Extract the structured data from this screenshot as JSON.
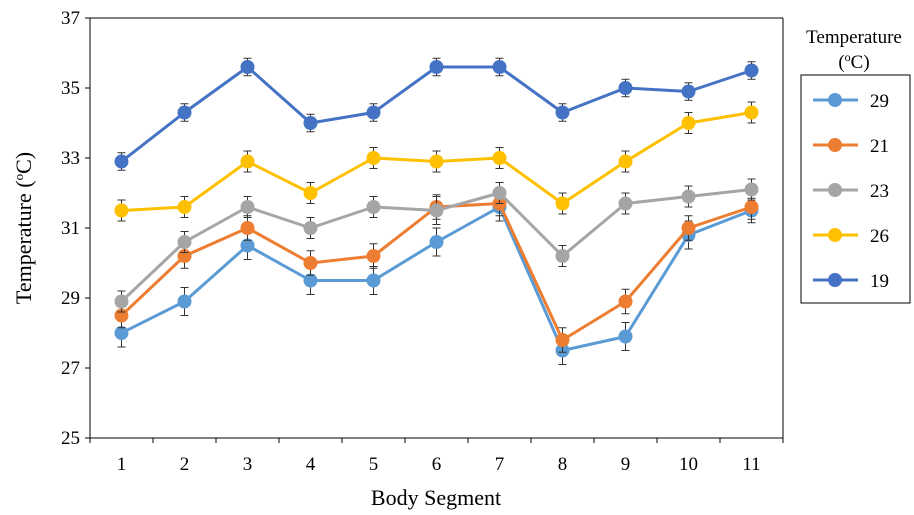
{
  "chart_data": {
    "type": "line",
    "xlabel": "Body Segment",
    "ylabel_main": "Temperature (",
    "ylabel_sup": "o",
    "ylabel_end": "C)",
    "legend_title_line1": "Temperature",
    "legend_title_line2_open": "(",
    "legend_title_line2_sup": "o",
    "legend_title_line2_end": "C)",
    "legend_position": "right",
    "categories": [
      "1",
      "2",
      "3",
      "4",
      "5",
      "6",
      "7",
      "8",
      "9",
      "10",
      "11"
    ],
    "ylim": [
      25,
      37
    ],
    "yticks": [
      "25",
      "27",
      "29",
      "31",
      "33",
      "35",
      "37"
    ],
    "grid": false,
    "series": [
      {
        "name": "29",
        "color": "#5B9BD5",
        "values": [
          28.0,
          28.9,
          30.5,
          29.5,
          29.5,
          30.6,
          31.6,
          27.5,
          27.9,
          30.8,
          31.5
        ],
        "errors": [
          0.4,
          0.4,
          0.4,
          0.4,
          0.4,
          0.4,
          0.4,
          0.4,
          0.4,
          0.4,
          0.35
        ]
      },
      {
        "name": "21",
        "color": "#ED7D31",
        "values": [
          28.5,
          30.2,
          31.0,
          30.0,
          30.2,
          31.6,
          31.7,
          27.8,
          28.9,
          31.0,
          31.6
        ],
        "errors": [
          0.35,
          0.35,
          0.35,
          0.35,
          0.35,
          0.35,
          0.35,
          0.35,
          0.35,
          0.35,
          0.35
        ]
      },
      {
        "name": "23",
        "color": "#A5A5A5",
        "values": [
          28.9,
          30.6,
          31.6,
          31.0,
          31.6,
          31.5,
          32.0,
          30.2,
          31.7,
          31.9,
          32.1
        ],
        "errors": [
          0.3,
          0.3,
          0.3,
          0.3,
          0.3,
          0.4,
          0.3,
          0.3,
          0.3,
          0.3,
          0.3
        ]
      },
      {
        "name": "26",
        "color": "#FFC000",
        "values": [
          31.5,
          31.6,
          32.9,
          32.0,
          33.0,
          32.9,
          33.0,
          31.7,
          32.9,
          34.0,
          34.3
        ],
        "errors": [
          0.3,
          0.3,
          0.3,
          0.3,
          0.3,
          0.3,
          0.3,
          0.3,
          0.3,
          0.3,
          0.3
        ]
      },
      {
        "name": "19",
        "color": "#4472C4",
        "values": [
          32.9,
          34.3,
          35.6,
          34.0,
          34.3,
          35.6,
          35.6,
          34.3,
          35.0,
          34.9,
          35.5
        ],
        "errors": [
          0.25,
          0.25,
          0.25,
          0.25,
          0.25,
          0.25,
          0.25,
          0.25,
          0.25,
          0.25,
          0.25
        ]
      }
    ]
  }
}
